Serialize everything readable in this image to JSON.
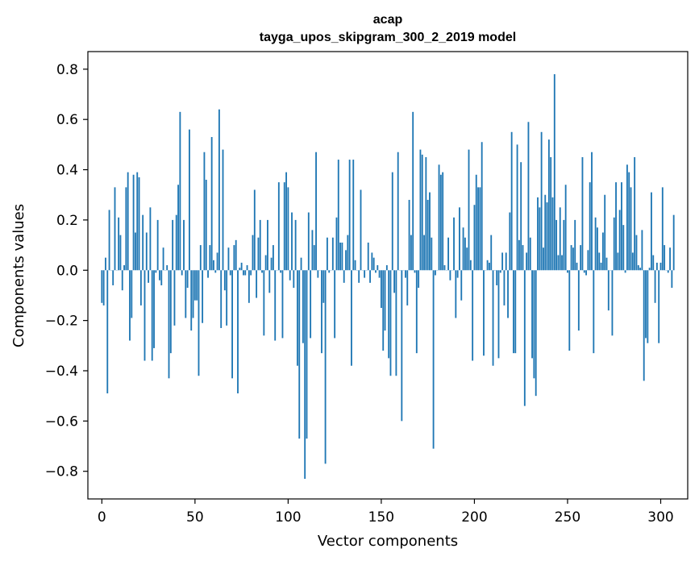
{
  "chart_data": {
    "type": "bar",
    "title": "acap",
    "subtitle": "tayga_upos_skipgram_300_2_2019 model",
    "xlabel": "Vector components",
    "ylabel": "Components values",
    "xlim": [
      -7.5,
      314.5
    ],
    "ylim": [
      -0.91,
      0.87
    ],
    "xticks": [
      0,
      50,
      100,
      150,
      200,
      250,
      300
    ],
    "xtick_labels": [
      "0",
      "50",
      "100",
      "150",
      "200",
      "250",
      "300"
    ],
    "yticks": [
      0.8,
      0.6,
      0.4,
      0.2,
      0.0,
      -0.2,
      -0.4,
      -0.6,
      -0.8
    ],
    "ytick_labels": [
      "0.8",
      "0.6",
      "0.4",
      "0.2",
      "0.0",
      "−0.2",
      "−0.4",
      "−0.6",
      "−0.8"
    ],
    "bar_color": "#1f77b4",
    "values": [
      -0.13,
      -0.14,
      0.05,
      -0.49,
      0.24,
      0.0,
      -0.06,
      0.33,
      0.0,
      0.21,
      0.14,
      -0.08,
      0.02,
      0.33,
      0.39,
      -0.28,
      -0.19,
      0.38,
      0.15,
      0.39,
      0.37,
      -0.14,
      0.22,
      -0.36,
      0.15,
      -0.05,
      0.25,
      -0.36,
      -0.31,
      -0.01,
      0.2,
      -0.04,
      -0.06,
      0.09,
      0.0,
      0.02,
      -0.43,
      -0.33,
      0.2,
      -0.22,
      0.22,
      0.34,
      0.63,
      -0.02,
      0.2,
      -0.19,
      -0.07,
      0.56,
      -0.24,
      -0.19,
      -0.12,
      -0.12,
      -0.42,
      0.1,
      -0.21,
      0.47,
      0.36,
      -0.03,
      0.1,
      0.53,
      0.04,
      -0.01,
      0.07,
      0.64,
      -0.23,
      0.48,
      -0.08,
      -0.22,
      0.09,
      -0.02,
      -0.43,
      0.1,
      0.12,
      -0.49,
      0.01,
      0.03,
      -0.02,
      -0.02,
      0.02,
      -0.13,
      -0.02,
      0.14,
      0.32,
      -0.11,
      0.13,
      0.2,
      -0.01,
      -0.26,
      0.06,
      0.2,
      -0.09,
      0.05,
      0.1,
      -0.28,
      0.0,
      0.35,
      -0.01,
      -0.27,
      0.35,
      0.39,
      0.33,
      -0.04,
      0.23,
      -0.07,
      0.2,
      -0.38,
      -0.67,
      0.05,
      -0.29,
      -0.83,
      -0.67,
      0.23,
      -0.27,
      0.16,
      0.1,
      0.47,
      -0.03,
      0.0,
      -0.33,
      -0.13,
      -0.77,
      0.13,
      -0.01,
      0.0,
      0.13,
      -0.27,
      0.21,
      0.44,
      0.11,
      0.11,
      -0.05,
      0.08,
      0.14,
      0.44,
      -0.38,
      0.44,
      0.04,
      0.0,
      -0.05,
      0.32,
      0.0,
      -0.03,
      0.0,
      0.11,
      -0.05,
      0.07,
      0.05,
      -0.01,
      0.02,
      -0.03,
      -0.15,
      -0.32,
      -0.24,
      0.02,
      -0.35,
      -0.42,
      0.39,
      -0.09,
      -0.42,
      0.47,
      0.0,
      -0.6,
      0.0,
      -0.03,
      -0.14,
      0.28,
      0.14,
      0.63,
      -0.01,
      -0.33,
      -0.07,
      0.48,
      0.46,
      0.14,
      0.45,
      0.28,
      0.31,
      0.13,
      -0.71,
      -0.02,
      0.0,
      0.42,
      0.38,
      0.39,
      0.02,
      0.0,
      0.13,
      -0.04,
      0.0,
      0.21,
      -0.19,
      -0.03,
      0.25,
      -0.12,
      0.17,
      0.13,
      0.09,
      0.48,
      0.04,
      -0.36,
      0.26,
      0.38,
      0.33,
      0.33,
      0.51,
      -0.34,
      0.0,
      0.04,
      0.03,
      0.14,
      -0.38,
      0.0,
      -0.06,
      -0.35,
      -0.01,
      0.07,
      -0.14,
      0.07,
      -0.19,
      0.23,
      0.55,
      -0.33,
      -0.33,
      0.5,
      0.12,
      0.43,
      0.1,
      -0.54,
      0.07,
      0.59,
      0.13,
      -0.35,
      -0.43,
      -0.5,
      0.29,
      0.25,
      0.55,
      0.09,
      0.3,
      0.27,
      0.52,
      0.45,
      0.29,
      0.78,
      0.2,
      0.06,
      0.25,
      0.06,
      0.2,
      0.34,
      -0.01,
      -0.32,
      0.1,
      0.09,
      0.2,
      0.03,
      -0.24,
      0.1,
      0.45,
      -0.01,
      -0.02,
      0.08,
      0.35,
      0.47,
      -0.33,
      0.21,
      0.17,
      0.07,
      0.03,
      0.15,
      0.3,
      0.05,
      -0.16,
      0.0,
      -0.26,
      0.21,
      0.35,
      0.07,
      0.24,
      0.35,
      0.18,
      -0.01,
      0.42,
      0.39,
      0.33,
      0.07,
      0.45,
      0.14,
      0.02,
      0.01,
      0.16,
      -0.44,
      -0.27,
      -0.29,
      0.01,
      0.31,
      0.06,
      -0.13,
      0.03,
      -0.29,
      0.03,
      0.33,
      0.1,
      0.0,
      -0.01,
      0.09,
      -0.07,
      0.22
    ]
  }
}
